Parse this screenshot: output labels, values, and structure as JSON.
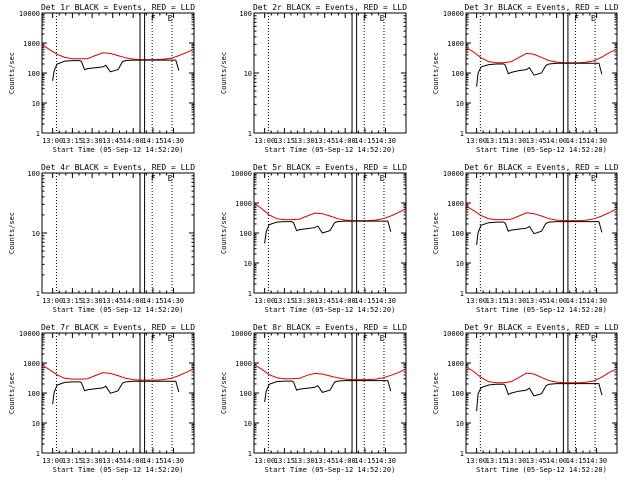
{
  "x_tick_labels": [
    "13:00",
    "13:15",
    "13:30",
    "13:45",
    "14:00",
    "14:15",
    "14:30"
  ],
  "x_axis_label": "Start Time (05-Sep-12 14:52:20)",
  "y_axis_label": "Counts/sec",
  "flag_labels": [
    "F",
    "E"
  ],
  "colors": {
    "events": "#000000",
    "lld": "#e00000",
    "axes": "#000000",
    "background": "#ffffff"
  },
  "chart_data": [
    {
      "type": "line",
      "title": "Det 1r BLACK = Events, RED = LLD",
      "yscale": "log",
      "ylim": [
        1,
        10000
      ],
      "y_tick_labels": [
        "1",
        "10",
        "100",
        "1000",
        "10000"
      ],
      "xlim": [
        0,
        100
      ],
      "series": [
        {
          "color": "#e00000",
          "x": [
            0,
            5,
            10,
            15,
            20,
            25,
            30,
            35,
            40,
            45,
            50,
            55,
            60,
            65,
            70,
            75,
            80,
            85,
            90,
            95,
            100
          ],
          "y": [
            900,
            600,
            420,
            330,
            300,
            300,
            300,
            380,
            470,
            450,
            380,
            320,
            290,
            280,
            280,
            280,
            290,
            310,
            380,
            480,
            620
          ]
        },
        {
          "color": "#000000",
          "x": [
            7,
            8,
            10,
            15,
            20,
            25,
            26,
            28,
            30,
            35,
            40,
            42,
            45,
            50,
            53,
            55,
            60,
            65,
            70,
            75,
            80,
            85,
            88,
            90
          ],
          "y": [
            55,
            120,
            200,
            250,
            260,
            260,
            240,
            130,
            140,
            150,
            160,
            180,
            110,
            130,
            240,
            260,
            270,
            270,
            270,
            270,
            270,
            270,
            270,
            120
          ]
        }
      ]
    },
    {
      "type": "line",
      "title": "Det 2r BLACK = Events, RED = LLD",
      "yscale": "log",
      "ylim": [
        1,
        100
      ],
      "y_tick_labels": [
        "1",
        "10",
        "100"
      ],
      "xlim": [
        0,
        100
      ],
      "series": []
    },
    {
      "type": "line",
      "title": "Det 3r BLACK = Events, RED = LLD",
      "yscale": "log",
      "ylim": [
        1,
        10000
      ],
      "y_tick_labels": [
        "1",
        "10",
        "100",
        "1000",
        "10000"
      ],
      "xlim": [
        0,
        100
      ],
      "series": [
        {
          "color": "#e00000",
          "x": [
            0,
            5,
            10,
            15,
            20,
            25,
            30,
            35,
            40,
            45,
            50,
            55,
            60,
            65,
            70,
            75,
            80,
            85,
            90,
            95,
            100
          ],
          "y": [
            700,
            500,
            320,
            240,
            220,
            220,
            240,
            330,
            450,
            420,
            330,
            260,
            230,
            220,
            220,
            220,
            230,
            260,
            340,
            480,
            620
          ]
        },
        {
          "color": "#000000",
          "x": [
            7,
            8,
            10,
            15,
            20,
            25,
            26,
            28,
            30,
            35,
            40,
            42,
            45,
            50,
            53,
            55,
            60,
            65,
            70,
            75,
            80,
            85,
            88,
            90
          ],
          "y": [
            35,
            100,
            160,
            190,
            200,
            200,
            180,
            95,
            105,
            120,
            130,
            150,
            85,
            100,
            180,
            200,
            210,
            210,
            210,
            210,
            210,
            210,
            210,
            90
          ]
        }
      ]
    },
    {
      "type": "line",
      "title": "Det 4r BLACK = Events, RED = LLD",
      "yscale": "log",
      "ylim": [
        1,
        100
      ],
      "y_tick_labels": [
        "1",
        "10",
        "100"
      ],
      "xlim": [
        0,
        100
      ],
      "series": []
    },
    {
      "type": "line",
      "title": "Det 5r BLACK = Events, RED = LLD",
      "yscale": "log",
      "ylim": [
        1,
        10000
      ],
      "y_tick_labels": [
        "1",
        "10",
        "100",
        "1000",
        "10000"
      ],
      "xlim": [
        0,
        100
      ],
      "series": [
        {
          "color": "#e00000",
          "x": [
            0,
            5,
            10,
            15,
            20,
            25,
            30,
            35,
            40,
            45,
            50,
            55,
            60,
            65,
            70,
            75,
            80,
            85,
            90,
            95,
            100
          ],
          "y": [
            1000,
            650,
            400,
            300,
            280,
            280,
            290,
            370,
            460,
            440,
            370,
            300,
            270,
            260,
            260,
            260,
            270,
            300,
            370,
            480,
            650
          ]
        },
        {
          "color": "#000000",
          "x": [
            7,
            8,
            10,
            15,
            20,
            25,
            26,
            28,
            30,
            35,
            40,
            42,
            45,
            50,
            53,
            55,
            60,
            65,
            70,
            75,
            80,
            85,
            88,
            90
          ],
          "y": [
            45,
            110,
            190,
            230,
            240,
            240,
            220,
            120,
            130,
            140,
            150,
            170,
            100,
            120,
            220,
            240,
            250,
            250,
            250,
            250,
            250,
            250,
            250,
            110
          ]
        }
      ]
    },
    {
      "type": "line",
      "title": "Det 6r BLACK = Events, RED = LLD",
      "yscale": "log",
      "ylim": [
        1,
        10000
      ],
      "y_tick_labels": [
        "1",
        "10",
        "100",
        "1000",
        "10000"
      ],
      "xlim": [
        0,
        100
      ],
      "series": [
        {
          "color": "#e00000",
          "x": [
            0,
            5,
            10,
            15,
            20,
            25,
            30,
            35,
            40,
            45,
            50,
            55,
            60,
            65,
            70,
            75,
            80,
            85,
            90,
            95,
            100
          ],
          "y": [
            800,
            560,
            380,
            300,
            280,
            280,
            290,
            370,
            470,
            440,
            370,
            300,
            270,
            260,
            260,
            260,
            270,
            300,
            370,
            480,
            650
          ]
        },
        {
          "color": "#000000",
          "x": [
            7,
            8,
            10,
            15,
            20,
            25,
            26,
            28,
            30,
            35,
            40,
            42,
            45,
            50,
            53,
            55,
            60,
            65,
            70,
            75,
            80,
            85,
            88,
            90
          ],
          "y": [
            40,
            105,
            180,
            220,
            230,
            230,
            210,
            115,
            125,
            135,
            145,
            165,
            95,
            115,
            210,
            230,
            240,
            240,
            240,
            240,
            240,
            240,
            240,
            105
          ]
        }
      ]
    },
    {
      "type": "line",
      "title": "Det 7r BLACK = Events, RED = LLD",
      "yscale": "log",
      "ylim": [
        1,
        10000
      ],
      "y_tick_labels": [
        "1",
        "10",
        "100",
        "1000",
        "10000"
      ],
      "xlim": [
        0,
        100
      ],
      "series": [
        {
          "color": "#e00000",
          "x": [
            0,
            5,
            10,
            15,
            20,
            25,
            30,
            35,
            40,
            45,
            50,
            55,
            60,
            65,
            70,
            75,
            80,
            85,
            90,
            95,
            100
          ],
          "y": [
            850,
            600,
            400,
            310,
            290,
            290,
            300,
            380,
            480,
            450,
            380,
            310,
            280,
            270,
            270,
            270,
            280,
            310,
            380,
            490,
            660
          ]
        },
        {
          "color": "#000000",
          "x": [
            7,
            8,
            10,
            15,
            20,
            25,
            26,
            28,
            30,
            35,
            40,
            42,
            45,
            50,
            53,
            55,
            60,
            65,
            70,
            75,
            80,
            85,
            88,
            90
          ],
          "y": [
            42,
            108,
            185,
            225,
            235,
            235,
            215,
            118,
            128,
            138,
            148,
            168,
            98,
            118,
            215,
            235,
            245,
            245,
            245,
            245,
            245,
            245,
            245,
            108
          ]
        }
      ]
    },
    {
      "type": "line",
      "title": "Det 8r BLACK = Events, RED = LLD",
      "yscale": "log",
      "ylim": [
        1,
        10000
      ],
      "y_tick_labels": [
        "1",
        "10",
        "100",
        "1000",
        "10000"
      ],
      "xlim": [
        0,
        100
      ],
      "series": [
        {
          "color": "#e00000",
          "x": [
            0,
            5,
            10,
            15,
            20,
            25,
            30,
            35,
            40,
            45,
            50,
            55,
            60,
            65,
            70,
            75,
            80,
            85,
            90,
            95,
            100
          ],
          "y": [
            900,
            620,
            410,
            320,
            300,
            300,
            310,
            390,
            450,
            430,
            370,
            320,
            290,
            280,
            280,
            280,
            290,
            320,
            390,
            480,
            640
          ]
        },
        {
          "color": "#000000",
          "x": [
            7,
            8,
            10,
            15,
            20,
            25,
            26,
            28,
            30,
            35,
            40,
            42,
            45,
            50,
            53,
            55,
            60,
            65,
            70,
            75,
            80,
            85,
            88,
            90
          ],
          "y": [
            50,
            115,
            195,
            240,
            250,
            250,
            230,
            125,
            135,
            145,
            155,
            175,
            105,
            125,
            230,
            250,
            260,
            260,
            260,
            260,
            260,
            260,
            260,
            115
          ]
        }
      ]
    },
    {
      "type": "line",
      "title": "Det 9r BLACK = Events, RED = LLD",
      "yscale": "log",
      "ylim": [
        1,
        10000
      ],
      "y_tick_labels": [
        "1",
        "10",
        "100",
        "1000",
        "10000"
      ],
      "xlim": [
        0,
        100
      ],
      "series": [
        {
          "color": "#e00000",
          "x": [
            0,
            5,
            10,
            15,
            20,
            25,
            30,
            35,
            40,
            45,
            50,
            55,
            60,
            65,
            70,
            75,
            80,
            85,
            90,
            95,
            100
          ],
          "y": [
            750,
            520,
            330,
            240,
            220,
            220,
            240,
            330,
            460,
            430,
            330,
            260,
            230,
            220,
            220,
            220,
            230,
            260,
            340,
            490,
            640
          ]
        },
        {
          "color": "#000000",
          "x": [
            7,
            8,
            10,
            15,
            20,
            25,
            26,
            28,
            30,
            35,
            40,
            42,
            45,
            50,
            53,
            55,
            60,
            65,
            70,
            75,
            80,
            85,
            88,
            90
          ],
          "y": [
            25,
            95,
            150,
            185,
            195,
            195,
            175,
            90,
            100,
            115,
            125,
            145,
            80,
            95,
            175,
            195,
            205,
            205,
            205,
            205,
            205,
            205,
            205,
            85
          ]
        }
      ]
    }
  ]
}
